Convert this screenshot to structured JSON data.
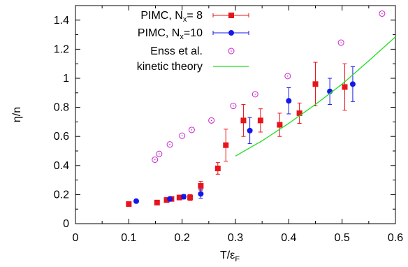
{
  "chart_data": {
    "type": "scatter",
    "title": "",
    "xlabel": "T/ε",
    "xlabel_sub": "F",
    "ylabel": "η/n",
    "xlim": [
      0,
      0.6
    ],
    "ylim": [
      0,
      1.5
    ],
    "xticks": [
      "0",
      "0.1",
      "0.2",
      "0.3",
      "0.4",
      "0.5",
      "0.6"
    ],
    "yticks": [
      "0",
      "0.2",
      "0.4",
      "0.6",
      "0.8",
      "1",
      "1.2",
      "1.4"
    ],
    "grid": false,
    "legend_position": "top-left",
    "series": [
      {
        "name": "PIMC, N",
        "name_sub": "x",
        "name_suffix": "= 8",
        "color": "#e8141b",
        "marker": "square",
        "errorbars": true,
        "x": [
          0.1,
          0.153,
          0.171,
          0.18,
          0.195,
          0.215,
          0.235,
          0.267,
          0.282,
          0.315,
          0.347,
          0.383,
          0.42,
          0.45,
          0.505
        ],
        "y": [
          0.135,
          0.145,
          0.163,
          0.17,
          0.18,
          0.18,
          0.26,
          0.38,
          0.54,
          0.71,
          0.71,
          0.68,
          0.76,
          0.96,
          0.94
        ],
        "err": [
          0.01,
          0.01,
          0.015,
          0.015,
          0.015,
          0.02,
          0.03,
          0.04,
          0.11,
          0.11,
          0.08,
          0.08,
          0.07,
          0.15,
          0.16
        ]
      },
      {
        "name": "PIMC, N",
        "name_sub": "x",
        "name_suffix": "=10",
        "color": "#1418e8",
        "marker": "circle",
        "errorbars": true,
        "x": [
          0.114,
          0.177,
          0.203,
          0.235,
          0.327,
          0.4,
          0.477,
          0.52
        ],
        "y": [
          0.155,
          0.17,
          0.185,
          0.205,
          0.64,
          0.845,
          0.91,
          0.96
        ],
        "err": [
          0.008,
          0.01,
          0.015,
          0.03,
          0.09,
          0.09,
          0.09,
          0.12
        ]
      },
      {
        "name": "Enss et al.",
        "color": "#cc22cc",
        "marker": "open-circle",
        "errorbars": false,
        "x": [
          0.149,
          0.157,
          0.177,
          0.2,
          0.218,
          0.255,
          0.296,
          0.337,
          0.398,
          0.498,
          0.575
        ],
        "y": [
          0.44,
          0.48,
          0.545,
          0.605,
          0.645,
          0.71,
          0.81,
          0.89,
          1.015,
          1.245,
          1.445
        ]
      },
      {
        "name": "kinetic theory",
        "color": "#22dd22",
        "marker": "line",
        "errorbars": false,
        "x": [
          0.3,
          0.35,
          0.4,
          0.45,
          0.5,
          0.55,
          0.6
        ],
        "y": [
          0.465,
          0.57,
          0.69,
          0.82,
          0.96,
          1.12,
          1.285
        ]
      }
    ]
  }
}
